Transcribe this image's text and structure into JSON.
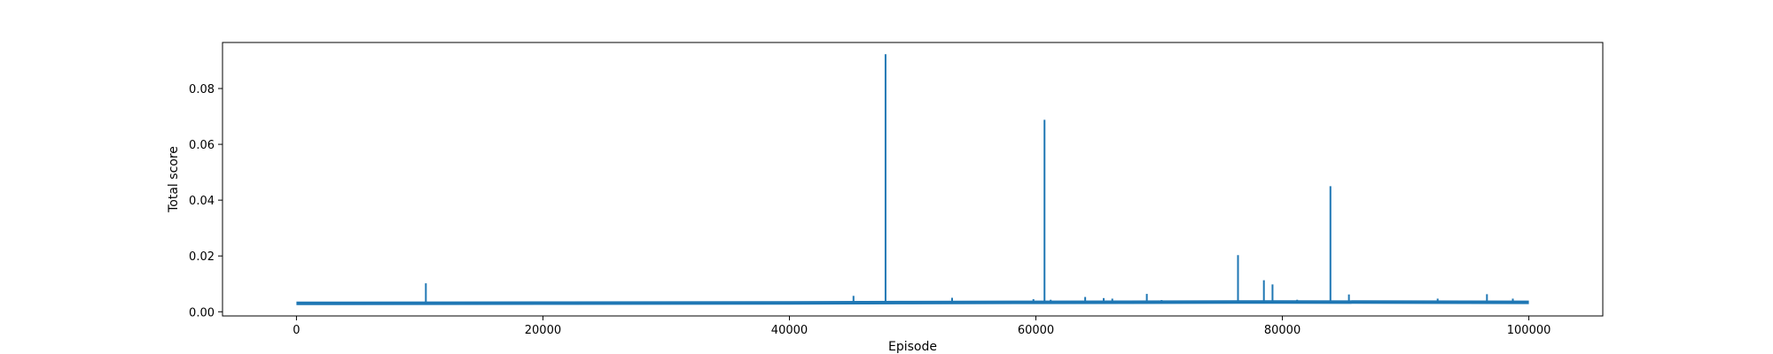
{
  "chart_data": {
    "type": "line",
    "title": "",
    "xlabel": "Episode",
    "ylabel": "Total score",
    "xlim": [
      -6000,
      106000
    ],
    "ylim": [
      -0.0015,
      0.0965
    ],
    "xticks": [
      0,
      20000,
      40000,
      60000,
      80000,
      100000
    ],
    "xtick_labels": [
      "0",
      "20000",
      "40000",
      "60000",
      "80000",
      "100000"
    ],
    "yticks": [
      0.0,
      0.02,
      0.04,
      0.06,
      0.08
    ],
    "ytick_labels": [
      "0.00",
      "0.02",
      "0.04",
      "0.06",
      "0.08"
    ],
    "grid": false,
    "legend": "none",
    "series": [
      {
        "color": "#1f77b4",
        "baseline": [
          [
            0,
            0.003
          ],
          [
            20000,
            0.0031
          ],
          [
            40000,
            0.0032
          ],
          [
            50000,
            0.0033
          ],
          [
            60000,
            0.0034
          ],
          [
            80000,
            0.0035
          ],
          [
            100000,
            0.0034
          ]
        ],
        "spikes": [
          [
            10500,
            0.0102
          ],
          [
            45200,
            0.0057
          ],
          [
            47800,
            0.0923
          ],
          [
            53200,
            0.005
          ],
          [
            59800,
            0.0045
          ],
          [
            60700,
            0.0688
          ],
          [
            61200,
            0.0043
          ],
          [
            64000,
            0.0053
          ],
          [
            65500,
            0.0049
          ],
          [
            66200,
            0.0047
          ],
          [
            69000,
            0.0064
          ],
          [
            70200,
            0.0042
          ],
          [
            76400,
            0.0203
          ],
          [
            78500,
            0.0113
          ],
          [
            79200,
            0.0098
          ],
          [
            80800,
            0.004
          ],
          [
            81200,
            0.0043
          ],
          [
            83900,
            0.045
          ],
          [
            85400,
            0.0062
          ],
          [
            90400,
            0.004
          ],
          [
            92600,
            0.0047
          ],
          [
            96600,
            0.0063
          ],
          [
            98700,
            0.0047
          ]
        ]
      }
    ]
  }
}
